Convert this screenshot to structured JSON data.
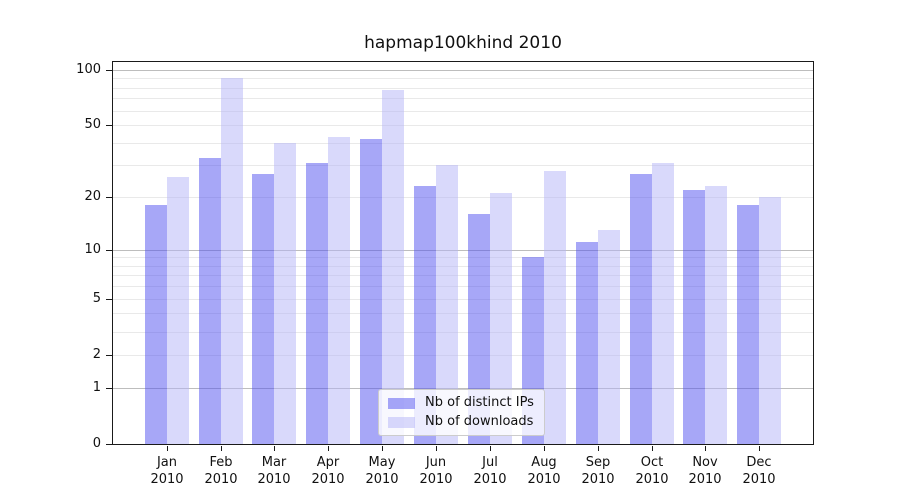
{
  "title": "hapmap100khind 2010",
  "chart_data": {
    "type": "bar",
    "categories": [
      "Jan 2010",
      "Feb 2010",
      "Mar 2010",
      "Apr 2010",
      "May 2010",
      "Jun 2010",
      "Jul 2010",
      "Aug 2010",
      "Sep 2010",
      "Oct 2010",
      "Nov 2010",
      "Dec 2010"
    ],
    "months": [
      "Jan",
      "Feb",
      "Mar",
      "Apr",
      "May",
      "Jun",
      "Jul",
      "Aug",
      "Sep",
      "Oct",
      "Nov",
      "Dec"
    ],
    "year": "2010",
    "series": [
      {
        "name": "Nb of distinct IPs",
        "color": "#a7a7f7",
        "fill_rgba": "rgba(80,80,240,0.5)",
        "values": [
          18,
          33,
          27,
          31,
          42,
          23,
          16,
          9,
          11,
          27,
          22,
          18
        ]
      },
      {
        "name": "Nb of downloads",
        "color": "#d9d9fa",
        "fill_rgba": "rgba(180,180,248,0.5)",
        "values": [
          26,
          90,
          40,
          43,
          78,
          30,
          21,
          28,
          13,
          31,
          23,
          20
        ]
      }
    ],
    "yscale": "log(1+x)",
    "ylim": [
      0,
      110
    ],
    "yticks": [
      0,
      1,
      2,
      5,
      10,
      20,
      50,
      100
    ],
    "major_gridlines": [
      1,
      10,
      100
    ],
    "minor_gridlines": [
      2,
      3,
      4,
      5,
      6,
      7,
      8,
      9,
      20,
      30,
      40,
      50,
      60,
      70,
      80,
      90
    ],
    "grid": true,
    "legend": {
      "position": "lower center",
      "entries": [
        "Nb of distinct IPs",
        "Nb of downloads"
      ]
    }
  },
  "colors": {
    "background": "#ffffff",
    "spine": "#1a1a1a",
    "text": "#111111",
    "grid_minor": "#e9e9e9",
    "grid_major": "#bdbdbd"
  }
}
